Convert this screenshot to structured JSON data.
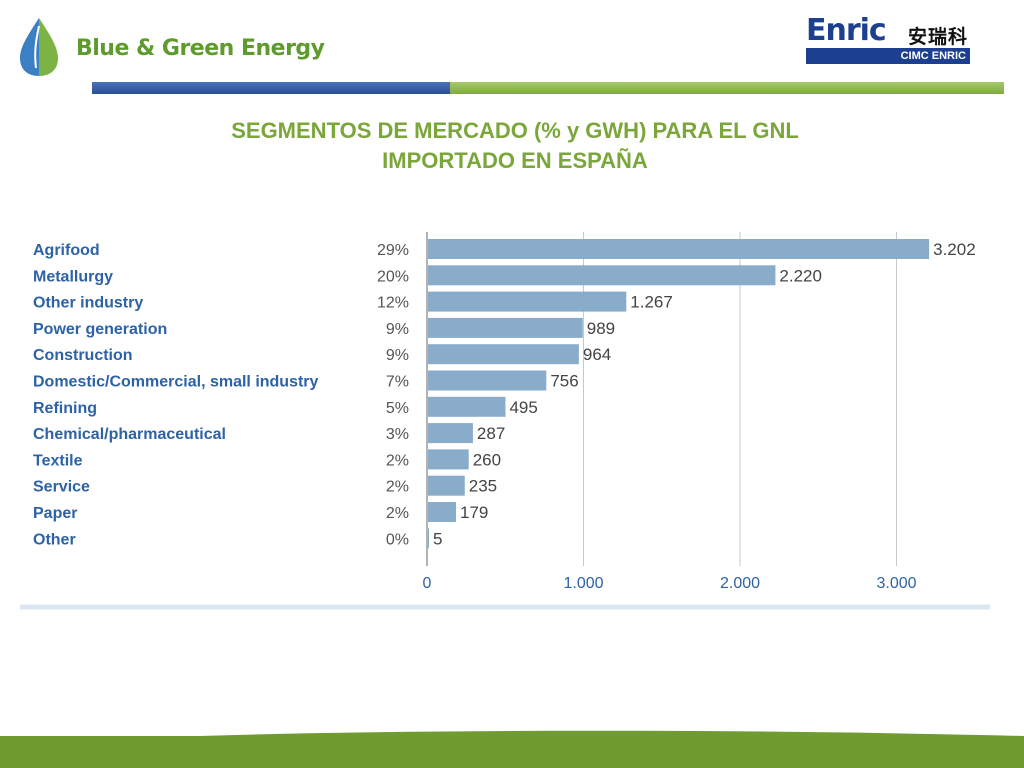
{
  "header": {
    "brand_name": "Blue & Green Energy",
    "partner_logo": {
      "wordmark": "Enric",
      "chinese": "安瑞科",
      "subline": "CIMC ENRIC"
    }
  },
  "slide": {
    "title_line1": "SEGMENTOS DE MERCADO (% y GWH) PARA EL GNL",
    "title_line2": "IMPORTADO EN ESPAÑA"
  },
  "colors": {
    "bar": "#8aaccb",
    "category_text": "#2e62a6",
    "title": "#7aa63a",
    "brand_green": "#5e9a2e",
    "footer_green": "#6f9b30"
  },
  "icons": {
    "brand_logo": "water-drop-leaf-icon"
  },
  "chart_data": {
    "type": "bar",
    "orientation": "horizontal",
    "title": "",
    "xlabel": "",
    "ylabel": "",
    "xlim": [
      0,
      3200
    ],
    "x_ticks": [
      0,
      1000,
      2000,
      3000
    ],
    "x_tick_labels": [
      "0",
      "1.000",
      "2.000",
      "3.000"
    ],
    "grid": "vertical",
    "categories": [
      "Agrifood",
      "Metallurgy",
      "Other industry",
      "Power generation",
      "Construction",
      "Domestic/Commercial, small industry",
      "Refining",
      "Chemical/pharmaceutical",
      "Textile",
      "Service",
      "Paper",
      "Other"
    ],
    "percent_labels": [
      "29%",
      "20%",
      "12%",
      "9%",
      "9%",
      "7%",
      "5%",
      "3%",
      "2%",
      "2%",
      "2%",
      "0%"
    ],
    "values": [
      3202,
      2220,
      1267,
      989,
      964,
      756,
      495,
      287,
      260,
      235,
      179,
      5
    ],
    "value_labels": [
      "3.202",
      "2.220",
      "1.267",
      "989",
      "964",
      "756",
      "495",
      "287",
      "260",
      "235",
      "179",
      "5"
    ]
  }
}
